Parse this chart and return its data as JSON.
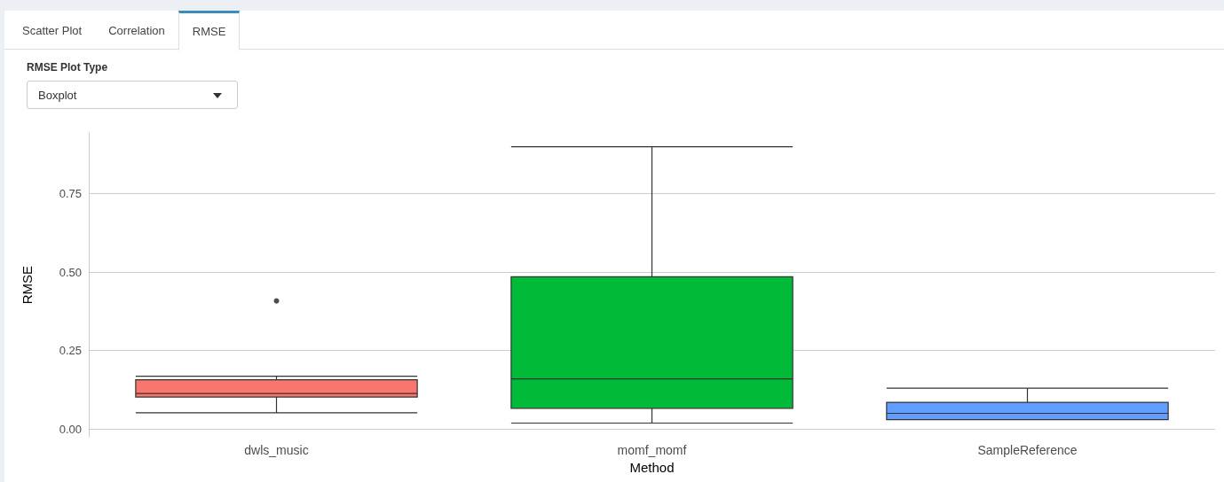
{
  "chart_data": {
    "type": "box",
    "xlabel": "Method",
    "ylabel": "RMSE",
    "categories": [
      "dwls_music",
      "momf_momf",
      "SampleReference"
    ],
    "colors": [
      "#f8766d",
      "#00ba38",
      "#619cff"
    ],
    "boxes": [
      {
        "low": 0.052,
        "q1": 0.102,
        "median": 0.113,
        "q3": 0.157,
        "high": 0.168,
        "outliers": [
          0.408
        ]
      },
      {
        "low": 0.019,
        "q1": 0.066,
        "median": 0.16,
        "q3": 0.485,
        "high": 0.899
      },
      {
        "low": 0.03,
        "q1": 0.03,
        "median": 0.05,
        "q3": 0.085,
        "high": 0.13
      }
    ],
    "ylim": [
      -0.025,
      0.943
    ],
    "yticks": [
      {
        "value": 0,
        "label": "0.00"
      },
      {
        "value": 0.25,
        "label": "0.25"
      },
      {
        "value": 0.5,
        "label": "0.50"
      },
      {
        "value": 0.75,
        "label": "0.75"
      }
    ],
    "grid": "y",
    "annotations": [
      "Scatter Plot",
      "Correlation",
      "RMSE",
      "RMSE Plot Type",
      "Boxplot"
    ]
  }
}
